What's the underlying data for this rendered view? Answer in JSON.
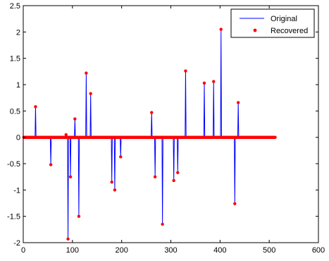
{
  "chart_data": {
    "type": "line",
    "title": "",
    "xlabel": "",
    "ylabel": "",
    "xlim": [
      0,
      600
    ],
    "ylim": [
      -2,
      2.5
    ],
    "x_ticks": [
      {
        "value": 0,
        "label": "0"
      },
      {
        "value": 100,
        "label": "100"
      },
      {
        "value": 200,
        "label": "200"
      },
      {
        "value": 300,
        "label": "300"
      },
      {
        "value": 400,
        "label": "400"
      },
      {
        "value": 500,
        "label": "500"
      },
      {
        "value": 600,
        "label": "600"
      }
    ],
    "y_ticks": [
      {
        "value": -2,
        "label": "-2"
      },
      {
        "value": -1.5,
        "label": "-1.5"
      },
      {
        "value": -1,
        "label": "-1"
      },
      {
        "value": -0.5,
        "label": "-0.5"
      },
      {
        "value": 0,
        "label": "0"
      },
      {
        "value": 0.5,
        "label": "0.5"
      },
      {
        "value": 1,
        "label": "1"
      },
      {
        "value": 1.5,
        "label": "1.5"
      },
      {
        "value": 2,
        "label": "2"
      },
      {
        "value": 2.5,
        "label": "2.5"
      }
    ],
    "signal_length": 512,
    "spikes": [
      {
        "x": 25,
        "y": 0.58
      },
      {
        "x": 56,
        "y": -0.52
      },
      {
        "x": 87,
        "y": 0.05
      },
      {
        "x": 91,
        "y": -1.93
      },
      {
        "x": 96,
        "y": -0.75
      },
      {
        "x": 105,
        "y": 0.35
      },
      {
        "x": 113,
        "y": -1.5
      },
      {
        "x": 128,
        "y": 1.22
      },
      {
        "x": 137,
        "y": 0.83
      },
      {
        "x": 180,
        "y": -0.85
      },
      {
        "x": 186,
        "y": -1.0
      },
      {
        "x": 198,
        "y": -0.37
      },
      {
        "x": 261,
        "y": 0.47
      },
      {
        "x": 268,
        "y": -0.75
      },
      {
        "x": 283,
        "y": -1.65
      },
      {
        "x": 306,
        "y": -0.82
      },
      {
        "x": 314,
        "y": -0.67
      },
      {
        "x": 330,
        "y": 1.26
      },
      {
        "x": 368,
        "y": 1.03
      },
      {
        "x": 387,
        "y": 1.06
      },
      {
        "x": 402,
        "y": 2.05
      },
      {
        "x": 430,
        "y": -1.26
      },
      {
        "x": 437,
        "y": 0.66
      }
    ],
    "series": [
      {
        "name": "Original",
        "style": "line",
        "color": "#0000ff"
      },
      {
        "name": "Recovered",
        "style": "markers",
        "color": "#ff0000"
      }
    ],
    "legend_position": "top-right",
    "grid": false
  }
}
